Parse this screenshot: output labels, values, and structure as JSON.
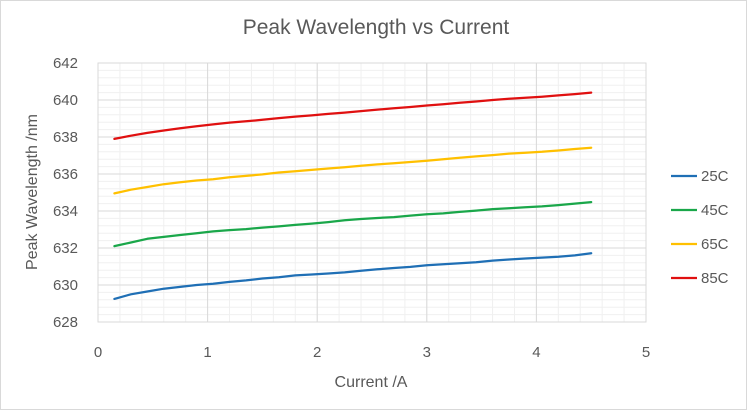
{
  "chart_data": {
    "type": "line",
    "title": "Peak Wavelength vs Current",
    "xlabel": "Current /A",
    "ylabel": "Peak Wavelength /nm",
    "xlim": [
      0,
      5
    ],
    "ylim": [
      628,
      642
    ],
    "x_ticks": [
      0,
      1,
      2,
      3,
      4,
      5
    ],
    "y_ticks": [
      628,
      630,
      632,
      634,
      636,
      638,
      640,
      642
    ],
    "grid": "major and minor",
    "legend_position": "right",
    "x": [
      0.15,
      0.3,
      0.45,
      0.6,
      0.75,
      0.9,
      1.05,
      1.2,
      1.35,
      1.5,
      1.65,
      1.8,
      1.95,
      2.1,
      2.25,
      2.4,
      2.55,
      2.7,
      2.85,
      3.0,
      3.15,
      3.3,
      3.45,
      3.6,
      3.75,
      3.9,
      4.05,
      4.2,
      4.35,
      4.5
    ],
    "series": [
      {
        "name": "25C",
        "color": "#1f6fb5",
        "values": [
          629.25,
          629.5,
          629.65,
          629.8,
          629.9,
          630.0,
          630.07,
          630.17,
          630.25,
          630.35,
          630.42,
          630.52,
          630.57,
          630.62,
          630.68,
          630.77,
          630.85,
          630.92,
          630.98,
          631.07,
          631.12,
          631.18,
          631.23,
          631.32,
          631.38,
          631.43,
          631.48,
          631.53,
          631.6,
          631.72
        ]
      },
      {
        "name": "45C",
        "color": "#1aa74a",
        "values": [
          632.1,
          632.3,
          632.5,
          632.6,
          632.7,
          632.8,
          632.9,
          632.97,
          633.02,
          633.1,
          633.17,
          633.25,
          633.32,
          633.4,
          633.5,
          633.57,
          633.62,
          633.67,
          633.75,
          633.82,
          633.87,
          633.95,
          634.02,
          634.1,
          634.15,
          634.2,
          634.25,
          634.32,
          634.4,
          634.48
        ]
      },
      {
        "name": "65C",
        "color": "#ffc000",
        "values": [
          634.95,
          635.15,
          635.3,
          635.45,
          635.55,
          635.65,
          635.72,
          635.82,
          635.9,
          635.98,
          636.08,
          636.15,
          636.22,
          636.3,
          636.37,
          636.45,
          636.52,
          636.58,
          636.65,
          636.72,
          636.8,
          636.88,
          636.95,
          637.02,
          637.1,
          637.15,
          637.2,
          637.27,
          637.35,
          637.42
        ]
      },
      {
        "name": "85C",
        "color": "#e01010",
        "values": [
          637.9,
          638.07,
          638.22,
          638.35,
          638.47,
          638.58,
          638.68,
          638.78,
          638.85,
          638.93,
          639.02,
          639.1,
          639.17,
          639.25,
          639.32,
          639.4,
          639.48,
          639.55,
          639.62,
          639.7,
          639.77,
          639.85,
          639.92,
          640.0,
          640.07,
          640.12,
          640.18,
          640.25,
          640.32,
          640.4
        ]
      }
    ]
  }
}
